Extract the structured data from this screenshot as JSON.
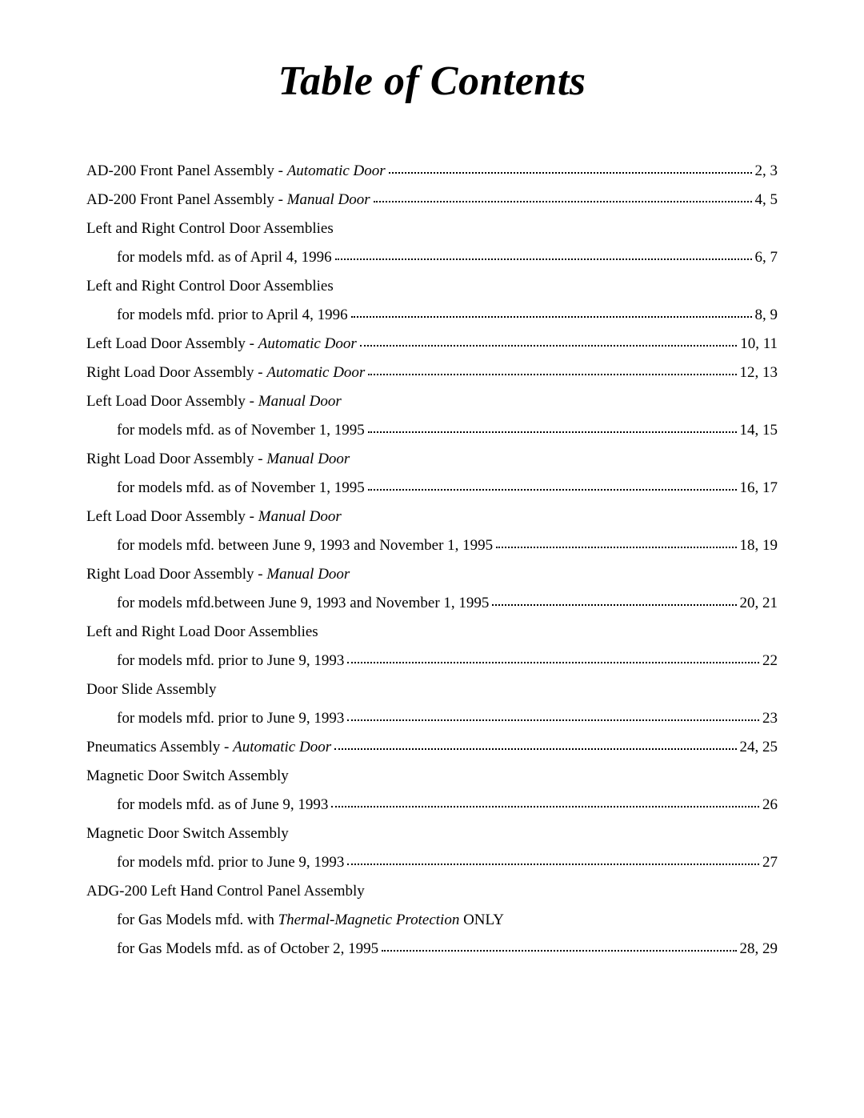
{
  "title": "Table of Contents",
  "entries": [
    {
      "indent": false,
      "label_pre": "AD-200 Front Panel Assembly - ",
      "label_ital": "Automatic Door",
      "label_post": "",
      "pages": "2, 3",
      "has_dots": true
    },
    {
      "indent": false,
      "label_pre": "AD-200 Front Panel Assembly - ",
      "label_ital": "Manual Door",
      "label_post": "",
      "pages": "4, 5",
      "has_dots": true
    },
    {
      "indent": false,
      "label_pre": "Left and Right Control Door Assemblies",
      "label_ital": "",
      "label_post": "",
      "pages": "",
      "has_dots": false
    },
    {
      "indent": true,
      "label_pre": "for models mfd. as of April 4, 1996",
      "label_ital": "",
      "label_post": "",
      "pages": "6, 7",
      "has_dots": true
    },
    {
      "indent": false,
      "label_pre": "Left and Right Control Door Assemblies",
      "label_ital": "",
      "label_post": "",
      "pages": "",
      "has_dots": false
    },
    {
      "indent": true,
      "label_pre": "for models mfd. prior to April 4, 1996",
      "label_ital": "",
      "label_post": "",
      "pages": "8, 9",
      "has_dots": true
    },
    {
      "indent": false,
      "label_pre": "Left Load Door Assembly - ",
      "label_ital": "Automatic Door",
      "label_post": "",
      "pages": "10, 11",
      "has_dots": true
    },
    {
      "indent": false,
      "label_pre": "Right Load Door Assembly - ",
      "label_ital": "Automatic Door",
      "label_post": "",
      "pages": "12, 13",
      "has_dots": true
    },
    {
      "indent": false,
      "label_pre": "Left Load Door Assembly - ",
      "label_ital": "Manual Door",
      "label_post": "",
      "pages": "",
      "has_dots": false
    },
    {
      "indent": true,
      "label_pre": "for models mfd. as of November 1, 1995",
      "label_ital": "",
      "label_post": "",
      "pages": "14, 15",
      "has_dots": true
    },
    {
      "indent": false,
      "label_pre": "Right Load Door Assembly - ",
      "label_ital": "Manual Door",
      "label_post": "",
      "pages": "",
      "has_dots": false
    },
    {
      "indent": true,
      "label_pre": "for models mfd. as of November 1, 1995",
      "label_ital": "",
      "label_post": "",
      "pages": "16, 17",
      "has_dots": true
    },
    {
      "indent": false,
      "label_pre": "Left Load Door Assembly - ",
      "label_ital": "Manual Door",
      "label_post": "",
      "pages": "",
      "has_dots": false
    },
    {
      "indent": true,
      "label_pre": "for models mfd. between June 9, 1993 and November 1, 1995",
      "label_ital": "",
      "label_post": "",
      "pages": "18, 19",
      "has_dots": true
    },
    {
      "indent": false,
      "label_pre": "Right Load Door Assembly - ",
      "label_ital": "Manual Door",
      "label_post": "",
      "pages": "",
      "has_dots": false
    },
    {
      "indent": true,
      "label_pre": "for models mfd.between June 9, 1993 and November 1, 1995",
      "label_ital": "",
      "label_post": "",
      "pages": "20, 21",
      "has_dots": true
    },
    {
      "indent": false,
      "label_pre": "Left and Right Load Door Assemblies",
      "label_ital": "",
      "label_post": "",
      "pages": "",
      "has_dots": false
    },
    {
      "indent": true,
      "label_pre": "for models mfd. prior to June 9, 1993",
      "label_ital": "",
      "label_post": "",
      "pages": "22",
      "has_dots": true
    },
    {
      "indent": false,
      "label_pre": "Door Slide Assembly",
      "label_ital": "",
      "label_post": "",
      "pages": "",
      "has_dots": false
    },
    {
      "indent": true,
      "label_pre": "for models mfd. prior to June 9, 1993",
      "label_ital": "",
      "label_post": "",
      "pages": "23",
      "has_dots": true
    },
    {
      "indent": false,
      "label_pre": "Pneumatics Assembly - ",
      "label_ital": "Automatic Door",
      "label_post": "",
      "pages": "24, 25",
      "has_dots": true
    },
    {
      "indent": false,
      "label_pre": "Magnetic Door Switch Assembly",
      "label_ital": "",
      "label_post": "",
      "pages": "",
      "has_dots": false
    },
    {
      "indent": true,
      "label_pre": "for models mfd. as of June 9, 1993",
      "label_ital": "",
      "label_post": "",
      "pages": "26",
      "has_dots": true
    },
    {
      "indent": false,
      "label_pre": "Magnetic Door Switch Assembly",
      "label_ital": "",
      "label_post": "",
      "pages": "",
      "has_dots": false
    },
    {
      "indent": true,
      "label_pre": "for models mfd. prior to June 9, 1993",
      "label_ital": "",
      "label_post": "",
      "pages": "27",
      "has_dots": true
    },
    {
      "indent": false,
      "label_pre": "ADG-200 Left Hand Control Panel Assembly",
      "label_ital": "",
      "label_post": "",
      "pages": "",
      "has_dots": false
    },
    {
      "indent": true,
      "label_pre": "for Gas Models mfd. with ",
      "label_ital": "Thermal-Magnetic Protection",
      "label_post": " ONLY",
      "pages": "",
      "has_dots": false
    },
    {
      "indent": true,
      "label_pre": "for Gas Models mfd. as of October 2, 1995",
      "label_ital": "",
      "label_post": "",
      "pages": "28, 29",
      "has_dots": true
    }
  ]
}
